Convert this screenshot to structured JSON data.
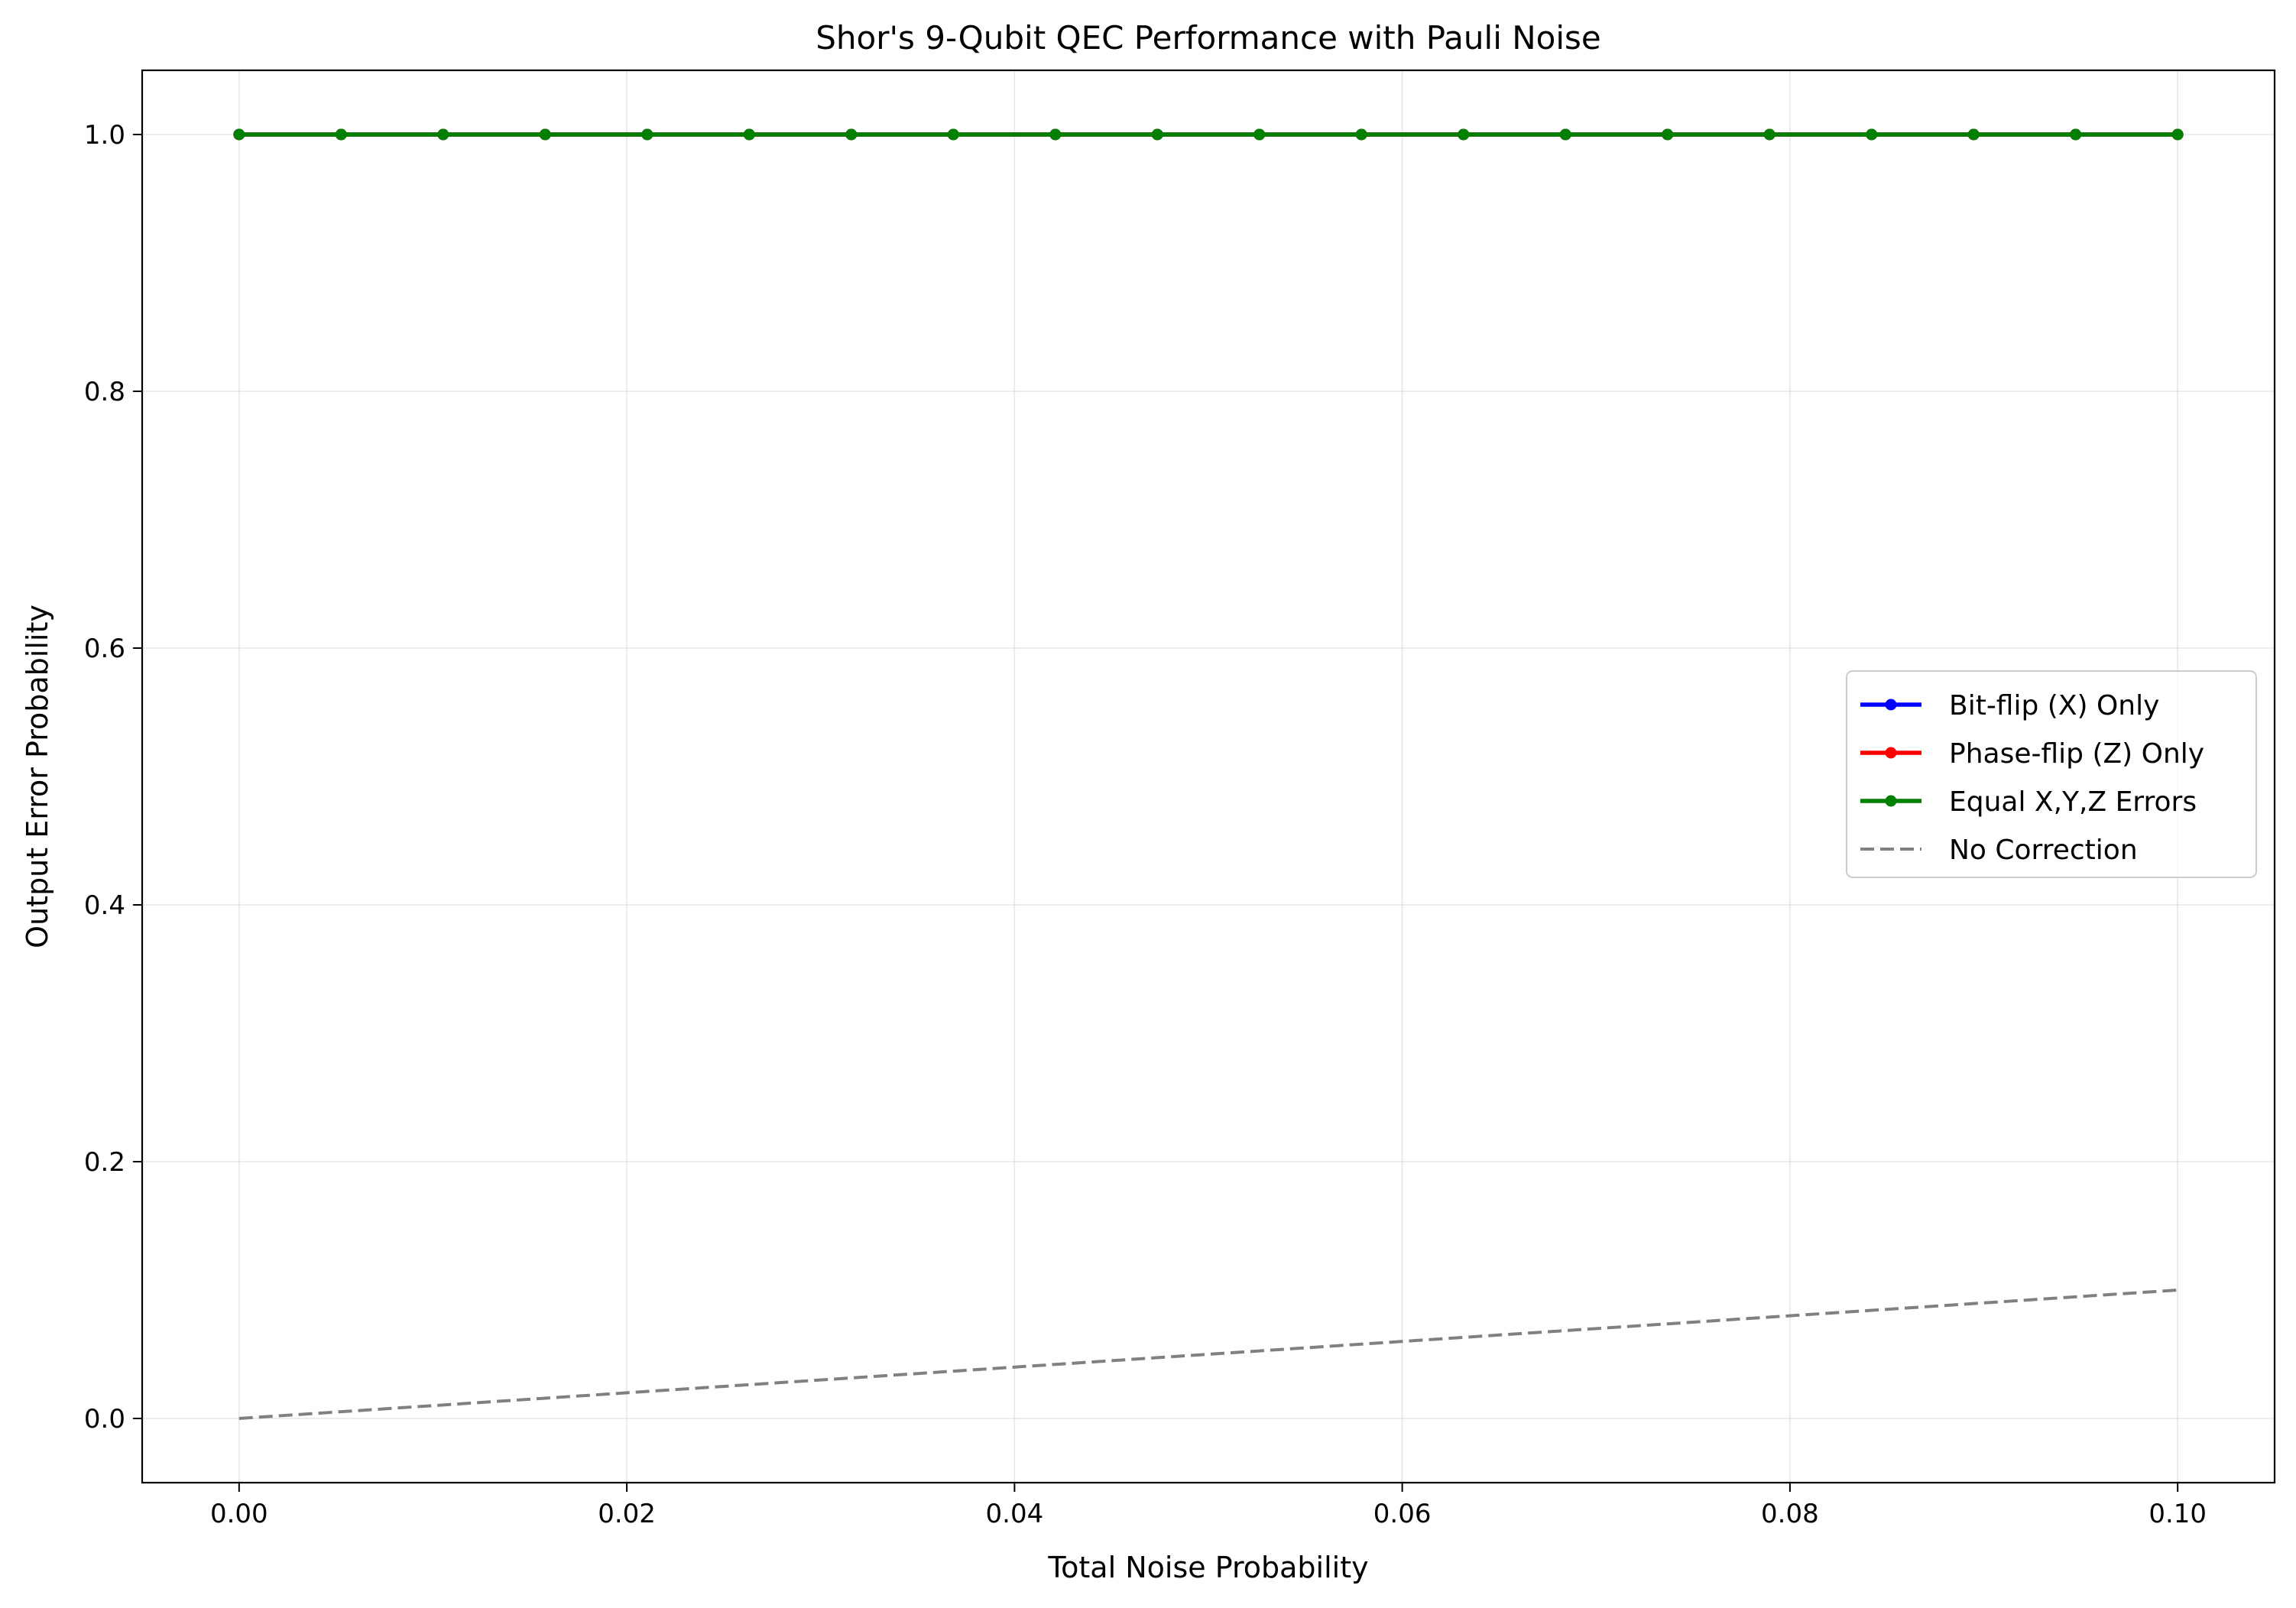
{
  "chart_data": {
    "type": "line",
    "title": "Shor's 9-Qubit QEC Performance with Pauli Noise",
    "xlabel": "Total Noise Probability",
    "ylabel": "Output Error Probability",
    "xlim": [
      -0.005,
      0.105
    ],
    "ylim": [
      -0.05,
      1.05
    ],
    "xticks": [
      0.0,
      0.02,
      0.04,
      0.06,
      0.08,
      0.1
    ],
    "xtick_labels": [
      "0.00",
      "0.02",
      "0.04",
      "0.06",
      "0.08",
      "0.10"
    ],
    "yticks": [
      0.0,
      0.2,
      0.4,
      0.6,
      0.8,
      1.0
    ],
    "ytick_labels": [
      "0.0",
      "0.2",
      "0.4",
      "0.6",
      "0.8",
      "1.0"
    ],
    "grid": true,
    "legend_position": "center-right",
    "x": [
      0.0,
      0.005263,
      0.010526,
      0.015789,
      0.021053,
      0.026316,
      0.031579,
      0.036842,
      0.042105,
      0.047368,
      0.052632,
      0.057895,
      0.063158,
      0.068421,
      0.073684,
      0.078947,
      0.084211,
      0.089474,
      0.094737,
      0.1
    ],
    "series": [
      {
        "name": "Bit-flip (X) Only",
        "color": "#0000ff",
        "style": "solid",
        "markers": true,
        "values": [
          1,
          1,
          1,
          1,
          1,
          1,
          1,
          1,
          1,
          1,
          1,
          1,
          1,
          1,
          1,
          1,
          1,
          1,
          1,
          1
        ]
      },
      {
        "name": "Phase-flip (Z) Only",
        "color": "#ff0000",
        "style": "solid",
        "markers": true,
        "values": [
          1,
          1,
          1,
          1,
          1,
          1,
          1,
          1,
          1,
          1,
          1,
          1,
          1,
          1,
          1,
          1,
          1,
          1,
          1,
          1
        ]
      },
      {
        "name": "Equal X,Y,Z Errors",
        "color": "#008000",
        "style": "solid",
        "markers": true,
        "values": [
          1,
          1,
          1,
          1,
          1,
          1,
          1,
          1,
          1,
          1,
          1,
          1,
          1,
          1,
          1,
          1,
          1,
          1,
          1,
          1
        ]
      },
      {
        "name": "No Correction",
        "color": "#808080",
        "style": "dashed",
        "markers": false,
        "values": [
          0.0,
          0.005263,
          0.010526,
          0.015789,
          0.021053,
          0.026316,
          0.031579,
          0.036842,
          0.042105,
          0.047368,
          0.052632,
          0.057895,
          0.063158,
          0.068421,
          0.073684,
          0.078947,
          0.084211,
          0.089474,
          0.094737,
          0.1
        ]
      }
    ]
  }
}
